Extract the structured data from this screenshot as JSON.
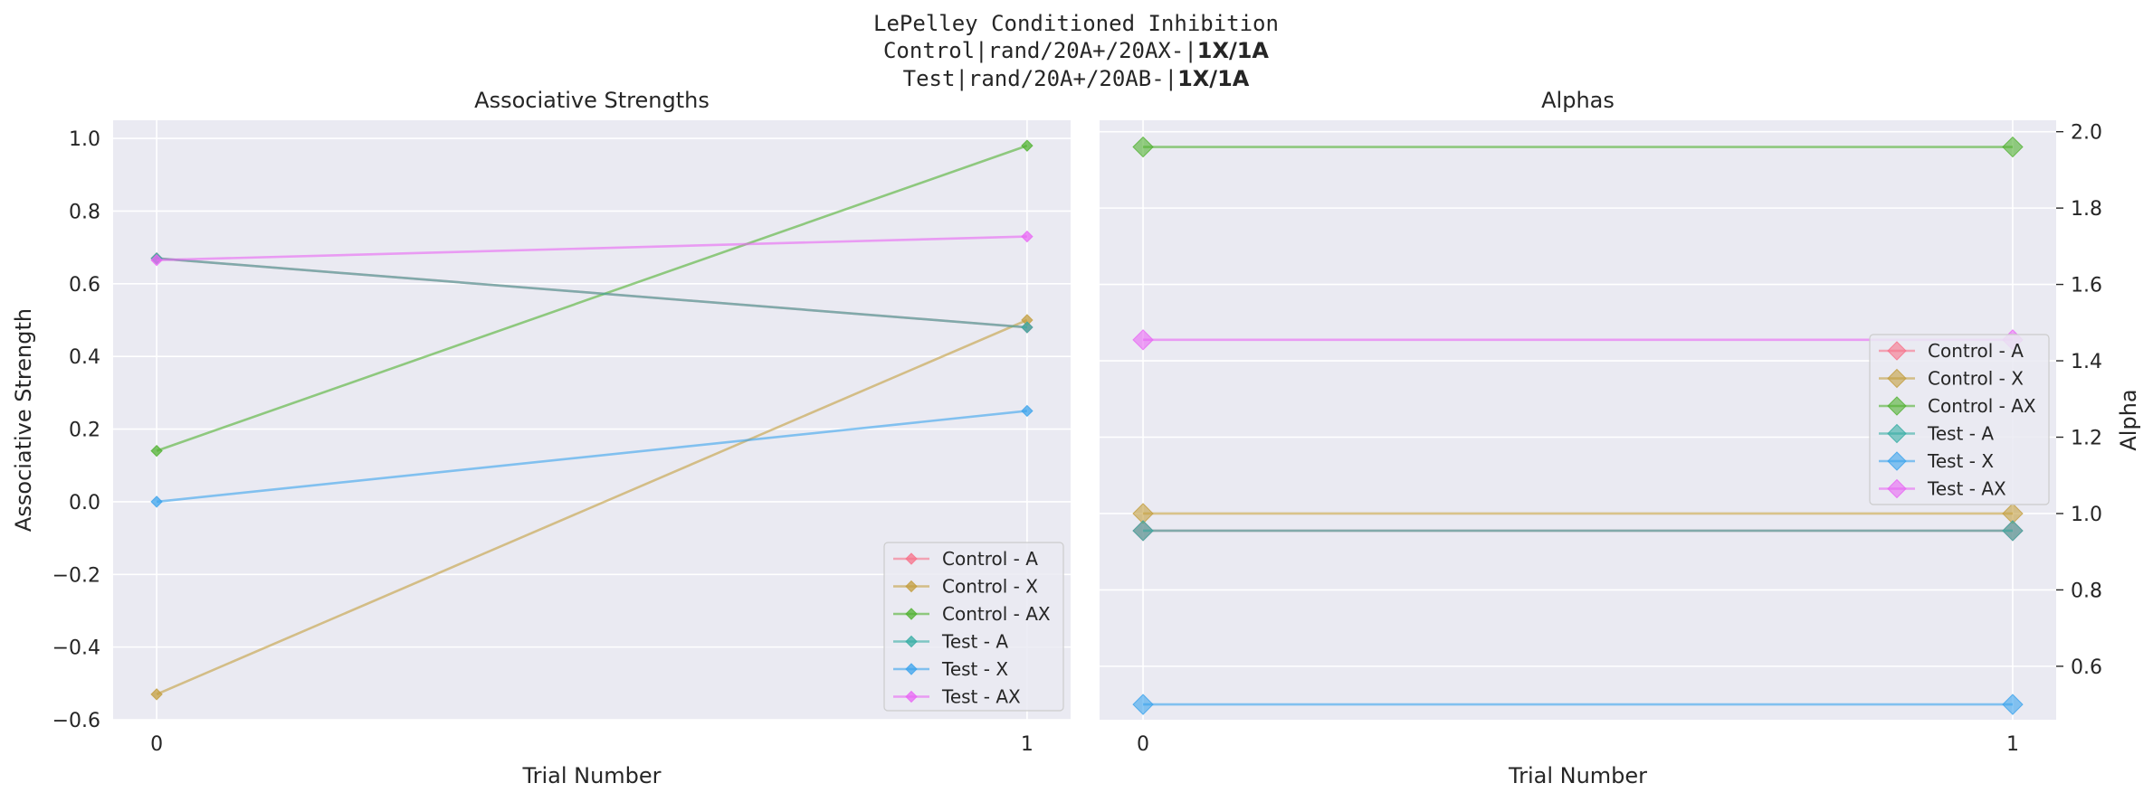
{
  "suptitle": {
    "line1": "LePelley Conditioned Inhibition",
    "line2_prefix": "Control|rand/20A+/20AX-|",
    "line2_bold": "1X/1A",
    "line3_prefix": "Test|rand/20A+/20AB-|",
    "line3_bold": "1X/1A"
  },
  "chart_data": [
    {
      "type": "line",
      "title": "Associative Strengths",
      "xlabel": "Trial Number",
      "ylabel": "Associative Strength",
      "x": [
        0,
        1
      ],
      "xlim": [
        -0.05,
        1.05
      ],
      "ylim": [
        -0.6,
        1.05
      ],
      "xticks": [
        0,
        1
      ],
      "yticks": [
        -0.6,
        -0.4,
        -0.2,
        0.0,
        0.2,
        0.4,
        0.6,
        0.8,
        1.0
      ],
      "ytick_labels": [
        "−0.6",
        "−0.4",
        "−0.2",
        "0.0",
        "0.2",
        "0.4",
        "0.6",
        "0.8",
        "1.0"
      ],
      "grid": true,
      "legend": "lower-right",
      "series": [
        {
          "name": "Control - A",
          "color": "#f77189",
          "values": [
            0.67,
            0.48
          ]
        },
        {
          "name": "Control - X",
          "color": "#c39e3e",
          "values": [
            -0.53,
            0.5
          ]
        },
        {
          "name": "Control - AX",
          "color": "#50b131",
          "values": [
            0.14,
            0.98
          ]
        },
        {
          "name": "Test - A",
          "color": "#36ada4",
          "values": [
            0.67,
            0.48
          ]
        },
        {
          "name": "Test - X",
          "color": "#3ba3ec",
          "values": [
            0.0,
            0.25
          ]
        },
        {
          "name": "Test - AX",
          "color": "#e866f4",
          "values": [
            0.665,
            0.73
          ]
        }
      ]
    },
    {
      "type": "line",
      "title": "Alphas",
      "xlabel": "Trial Number",
      "ylabel": "Alpha",
      "x": [
        0,
        1
      ],
      "xlim": [
        -0.05,
        1.05
      ],
      "ylim": [
        0.46,
        2.03
      ],
      "xticks": [
        0,
        1
      ],
      "yticks": [
        0.6,
        0.8,
        1.0,
        1.2,
        1.4,
        1.6,
        1.8,
        2.0
      ],
      "ytick_labels": [
        "0.6",
        "0.8",
        "1.0",
        "1.2",
        "1.4",
        "1.6",
        "1.8",
        "2.0"
      ],
      "grid": true,
      "legend": "center-right",
      "series": [
        {
          "name": "Control - A",
          "color": "#f77189",
          "values": [
            0.955,
            0.955
          ]
        },
        {
          "name": "Control - X",
          "color": "#c39e3e",
          "values": [
            1.0,
            1.0
          ]
        },
        {
          "name": "Control - AX",
          "color": "#50b131",
          "values": [
            1.96,
            1.96
          ]
        },
        {
          "name": "Test - A",
          "color": "#36ada4",
          "values": [
            0.955,
            0.955
          ]
        },
        {
          "name": "Test - X",
          "color": "#3ba3ec",
          "values": [
            0.5,
            0.5
          ]
        },
        {
          "name": "Test - AX",
          "color": "#e866f4",
          "values": [
            1.455,
            1.455
          ]
        }
      ]
    }
  ]
}
